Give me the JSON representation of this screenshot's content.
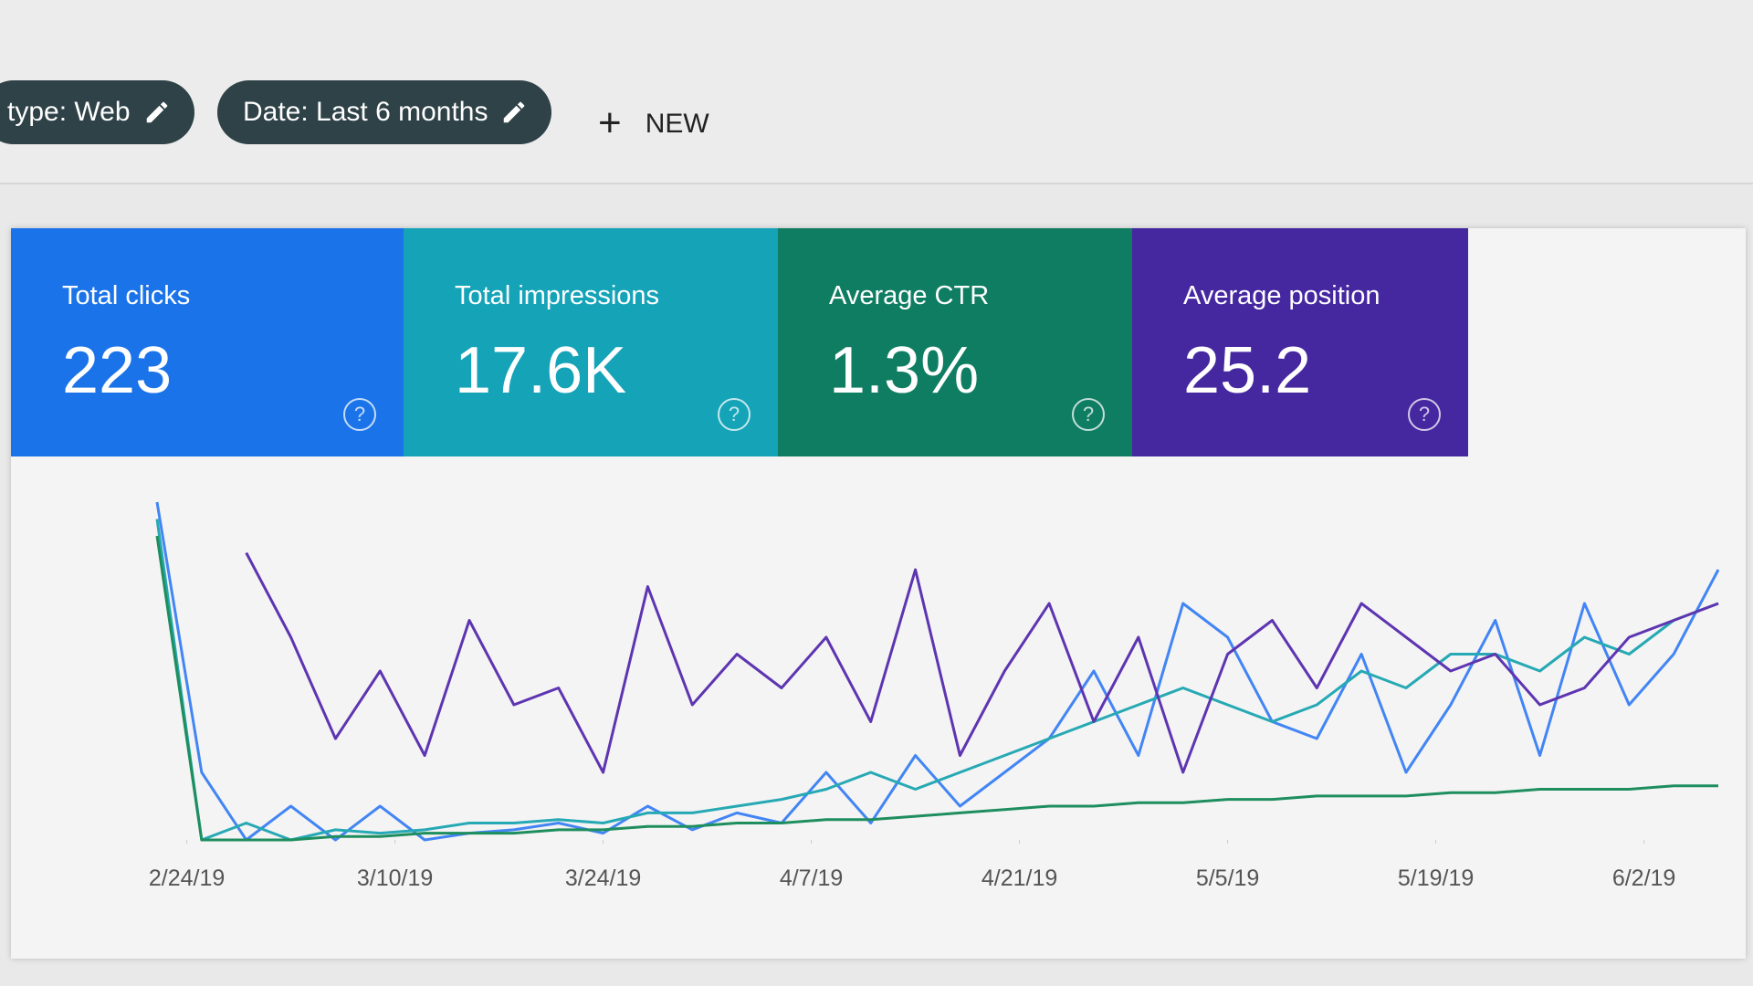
{
  "filters": [
    {
      "label": "type: Web"
    },
    {
      "label": "Date: Last 6 months"
    }
  ],
  "new_button": "NEW",
  "cards": [
    {
      "title": "Total clicks",
      "value": "223",
      "color": "#1a73e8"
    },
    {
      "title": "Total impressions",
      "value": "17.6K",
      "color": "#15a3b8"
    },
    {
      "title": "Average CTR",
      "value": "1.3%",
      "color": "#0f7d62"
    },
    {
      "title": "Average position",
      "value": "25.2",
      "color": "#4527a0"
    }
  ],
  "chart_data": {
    "type": "line",
    "x": [
      0,
      3,
      6,
      9,
      12,
      15,
      18,
      21,
      24,
      27,
      30,
      33,
      36,
      39,
      42,
      45,
      48,
      51,
      54,
      57,
      60,
      63,
      66,
      69,
      72,
      75,
      78,
      81,
      84,
      87,
      90,
      93,
      96,
      99,
      102,
      105
    ],
    "xlim": [
      0,
      105
    ],
    "ylim": [
      0,
      100
    ],
    "xticks": [
      {
        "value": 2,
        "label": "2/24/19"
      },
      {
        "value": 16,
        "label": "3/10/19"
      },
      {
        "value": 30,
        "label": "3/24/19"
      },
      {
        "value": 44,
        "label": "4/7/19"
      },
      {
        "value": 58,
        "label": "4/21/19"
      },
      {
        "value": 72,
        "label": "5/5/19"
      },
      {
        "value": 86,
        "label": "5/19/19"
      },
      {
        "value": 100,
        "label": "6/2/19"
      }
    ],
    "series": [
      {
        "color": "#4285f4",
        "values": [
          100,
          20,
          0,
          10,
          0,
          10,
          0,
          2,
          3,
          5,
          2,
          10,
          3,
          8,
          5,
          20,
          5,
          25,
          10,
          20,
          30,
          50,
          25,
          70,
          60,
          35,
          30,
          55,
          20,
          40,
          65,
          25,
          70,
          40,
          55,
          80
        ]
      },
      {
        "color": "#26a9b4",
        "values": [
          95,
          0,
          5,
          0,
          3,
          2,
          3,
          5,
          5,
          6,
          5,
          8,
          8,
          10,
          12,
          15,
          20,
          15,
          20,
          25,
          30,
          35,
          40,
          45,
          40,
          35,
          40,
          50,
          45,
          55,
          55,
          50,
          60,
          55,
          65,
          70
        ]
      },
      {
        "color": "#1e8e5e",
        "values": [
          90,
          0,
          0,
          0,
          1,
          1,
          2,
          2,
          2,
          3,
          3,
          4,
          4,
          5,
          5,
          6,
          6,
          7,
          8,
          9,
          10,
          10,
          11,
          11,
          12,
          12,
          13,
          13,
          13,
          14,
          14,
          15,
          15,
          15,
          16,
          16
        ]
      },
      {
        "color": "#5e35b1",
        "values": [
          null,
          null,
          85,
          60,
          30,
          50,
          25,
          65,
          40,
          45,
          20,
          75,
          40,
          55,
          45,
          60,
          35,
          80,
          25,
          50,
          70,
          35,
          60,
          20,
          55,
          65,
          45,
          70,
          60,
          50,
          55,
          40,
          45,
          60,
          65,
          70
        ]
      }
    ]
  }
}
